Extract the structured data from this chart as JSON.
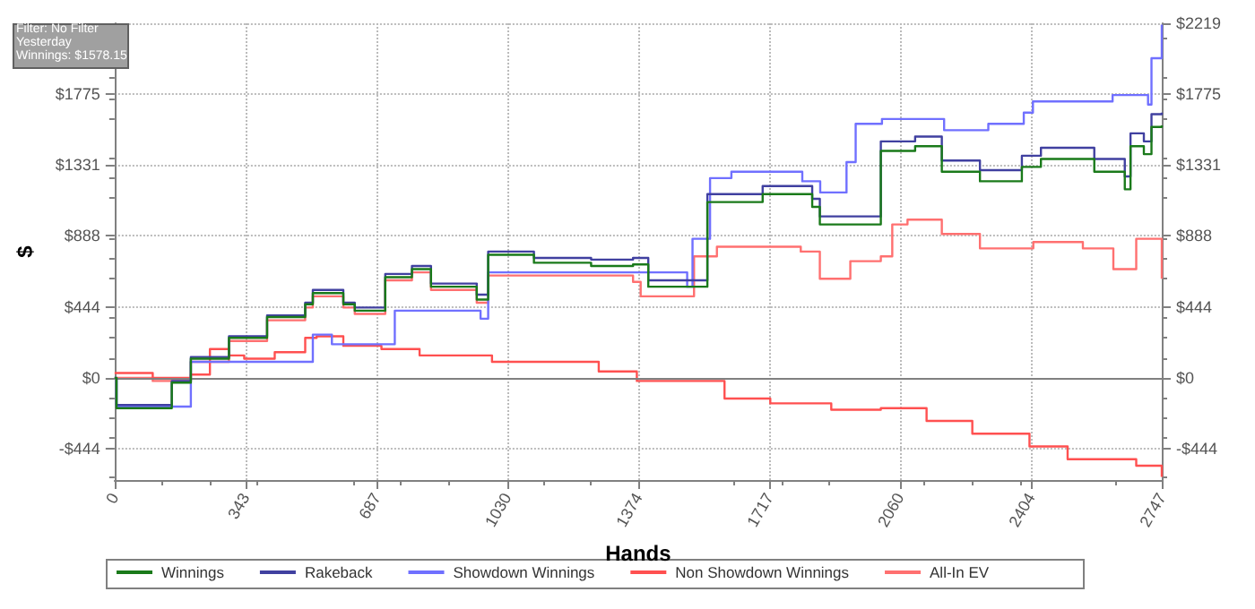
{
  "chart_data": {
    "type": "step",
    "xlabel": "Hands",
    "ylabel": "$",
    "annotations": [
      "Filter: No Filter",
      "Yesterday",
      "Winnings: $1578.15"
    ],
    "xlim": [
      0,
      2747
    ],
    "xticks": [
      0,
      343,
      687,
      1030,
      1374,
      1717,
      2060,
      2404,
      2747
    ],
    "ylim": [
      -640,
      2219
    ],
    "yticks": [
      {
        "value": -444,
        "label": "-$444"
      },
      {
        "value": 0,
        "label": "$0"
      },
      {
        "value": 444,
        "label": "$444"
      },
      {
        "value": 888,
        "label": "$888"
      },
      {
        "value": 1331,
        "label": "$1331"
      },
      {
        "value": 1775,
        "label": "$1775"
      },
      {
        "value": 2219,
        "label": null
      }
    ],
    "y2lim": [
      -640,
      2219
    ],
    "y2ticks": [
      {
        "value": -444,
        "label": "-$444"
      },
      {
        "value": 0,
        "label": "$0"
      },
      {
        "value": 444,
        "label": "$444"
      },
      {
        "value": 888,
        "label": "$888"
      },
      {
        "value": 1331,
        "label": "$1331"
      },
      {
        "value": 1775,
        "label": "$1775"
      },
      {
        "value": 2219,
        "label": "$2219"
      }
    ],
    "grid": true,
    "legend": "bottom",
    "marker": "none",
    "line_style": "solid",
    "ref_lines": [
      {
        "axis": "y",
        "value": 0,
        "color": "#808080"
      }
    ],
    "series": [
      {
        "name": "Winnings",
        "color": "#1a7a1a",
        "x": [
          0,
          5,
          140,
          150,
          200,
          300,
          400,
          500,
          520,
          590,
          600,
          630,
          700,
          710,
          780,
          830,
          950,
          980,
          1100,
          1250,
          1360,
          1400,
          1500,
          1555,
          1700,
          1830,
          1850,
          1970,
          2010,
          2100,
          2170,
          2270,
          2380,
          2430,
          2570,
          2650,
          2665,
          2700,
          2720,
          2747
        ],
        "values": [
          0,
          -190,
          -190,
          -30,
          120,
          250,
          380,
          460,
          530,
          530,
          460,
          420,
          420,
          630,
          680,
          570,
          490,
          770,
          720,
          700,
          710,
          570,
          570,
          1100,
          1150,
          1070,
          960,
          960,
          1420,
          1450,
          1290,
          1230,
          1320,
          1370,
          1290,
          1180,
          1450,
          1400,
          1570,
          1580
        ]
      },
      {
        "name": "Rakeback",
        "color": "#4040a0",
        "x": [
          0,
          5,
          140,
          150,
          200,
          300,
          400,
          500,
          520,
          590,
          600,
          630,
          700,
          710,
          780,
          830,
          950,
          980,
          1100,
          1250,
          1360,
          1400,
          1500,
          1555,
          1700,
          1830,
          1850,
          1970,
          2010,
          2100,
          2170,
          2270,
          2380,
          2430,
          2570,
          2650,
          2665,
          2700,
          2720,
          2747
        ],
        "values": [
          0,
          -170,
          -170,
          -20,
          130,
          260,
          390,
          470,
          550,
          550,
          470,
          440,
          440,
          650,
          700,
          590,
          520,
          790,
          750,
          740,
          750,
          610,
          610,
          1150,
          1200,
          1120,
          1010,
          1010,
          1480,
          1510,
          1360,
          1300,
          1390,
          1440,
          1370,
          1260,
          1530,
          1480,
          1650,
          1660
        ]
      },
      {
        "name": "Showdown Winnings",
        "color": "#7070ff",
        "x": [
          0,
          5,
          110,
          200,
          430,
          520,
          570,
          690,
          735,
          945,
          960,
          980,
          1502,
          1516,
          1562,
          1618,
          1804,
          1851,
          1920,
          1944,
          2013,
          2176,
          2292,
          2385,
          2409,
          2618,
          2711,
          2720,
          2747
        ],
        "values": [
          0,
          -180,
          -180,
          100,
          100,
          270,
          210,
          210,
          420,
          420,
          370,
          660,
          570,
          870,
          1250,
          1290,
          1230,
          1160,
          1350,
          1590,
          1620,
          1550,
          1590,
          1660,
          1730,
          1770,
          1710,
          2000,
          2210
        ]
      },
      {
        "name": "Non Showdown Winnings",
        "color": "#ff5050",
        "x": [
          0,
          100,
          200,
          250,
          300,
          340,
          420,
          500,
          530,
          600,
          700,
          800,
          990,
          1270,
          1370,
          1600,
          1720,
          1880,
          2010,
          2130,
          2250,
          2400,
          2500,
          2680,
          2747
        ],
        "values": [
          30,
          0,
          20,
          180,
          140,
          120,
          160,
          250,
          260,
          200,
          180,
          140,
          100,
          40,
          -20,
          -130,
          -160,
          -200,
          -190,
          -270,
          -350,
          -430,
          -510,
          -550,
          -620
        ]
      },
      {
        "name": "All-In EV",
        "color": "#ff7070",
        "x": [
          0,
          100,
          200,
          300,
          400,
          500,
          520,
          590,
          600,
          630,
          700,
          710,
          780,
          830,
          950,
          980,
          1360,
          1380,
          1470,
          1520,
          1580,
          1700,
          1800,
          1850,
          1920,
          1930,
          2010,
          2040,
          2080,
          2170,
          2270,
          2410,
          2540,
          2620,
          2680,
          2747
        ],
        "values": [
          0,
          -20,
          100,
          230,
          360,
          440,
          510,
          510,
          440,
          400,
          400,
          610,
          660,
          550,
          470,
          640,
          600,
          510,
          510,
          760,
          820,
          820,
          790,
          620,
          620,
          730,
          760,
          960,
          990,
          900,
          810,
          850,
          810,
          680,
          870,
          620
        ]
      }
    ]
  }
}
